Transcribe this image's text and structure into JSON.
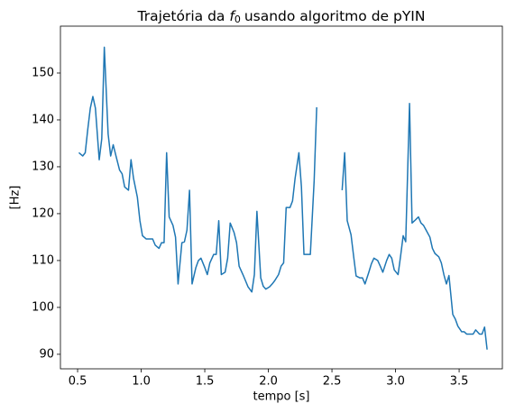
{
  "chart_data": {
    "type": "line",
    "title": {
      "before": "Trajetória da",
      "symbol": "f",
      "subscript": "0",
      "after": "usando algoritmo de pYIN"
    },
    "xlabel": "tempo [s]",
    "ylabel": "[Hz]",
    "color": "#1f77b4",
    "x": [
      0.51,
      0.54,
      0.56,
      0.58,
      0.6,
      0.62,
      0.64,
      0.67,
      0.69,
      0.71,
      0.74,
      0.76,
      0.78,
      0.8,
      0.83,
      0.85,
      0.87,
      0.9,
      0.92,
      0.94,
      0.97,
      0.99,
      1.01,
      1.04,
      1.06,
      1.09,
      1.11,
      1.14,
      1.16,
      1.18,
      1.2,
      1.22,
      1.25,
      1.27,
      1.29,
      1.32,
      1.34,
      1.36,
      1.38,
      1.4,
      1.43,
      1.45,
      1.47,
      1.5,
      1.52,
      1.54,
      1.57,
      1.59,
      1.61,
      1.63,
      1.66,
      1.68,
      1.7,
      1.73,
      1.75,
      1.77,
      1.8,
      1.82,
      1.84,
      1.87,
      1.89,
      1.91,
      1.94,
      1.96,
      1.98,
      2.01,
      2.03,
      2.05,
      2.08,
      2.1,
      2.12,
      2.14,
      2.17,
      2.19,
      2.21,
      2.24,
      2.26,
      2.28,
      2.31,
      2.33,
      2.36,
      2.38,
      2.48,
      2.58,
      2.6,
      2.62,
      2.65,
      2.67,
      2.69,
      2.72,
      2.74,
      2.76,
      2.79,
      2.81,
      2.83,
      2.86,
      2.88,
      2.9,
      2.93,
      2.95,
      2.97,
      2.99,
      3.02,
      3.04,
      3.06,
      3.08,
      3.11,
      3.13,
      3.15,
      3.18,
      3.2,
      3.22,
      3.24,
      3.27,
      3.29,
      3.31,
      3.34,
      3.36,
      3.38,
      3.4,
      3.42,
      3.45,
      3.47,
      3.49,
      3.52,
      3.54,
      3.56,
      3.59,
      3.61,
      3.63,
      3.66,
      3.68,
      3.7,
      3.72
    ],
    "values": [
      133,
      132.3,
      133,
      138,
      142.5,
      145,
      142.5,
      131.5,
      136,
      155.5,
      137,
      132.3,
      134.7,
      132.5,
      129.3,
      128.5,
      125.7,
      125,
      131.5,
      127.5,
      123.5,
      118.5,
      115.3,
      114.6,
      114.6,
      114.6,
      113.3,
      112.6,
      113.8,
      113.8,
      133,
      119.3,
      117.5,
      115,
      105,
      113.8,
      114,
      116.5,
      125,
      105,
      108.5,
      110,
      110.5,
      108.5,
      107,
      109.5,
      111.3,
      111.3,
      118.5,
      107,
      107.5,
      110.5,
      118,
      116,
      113.8,
      108.8,
      107,
      105.7,
      104.4,
      103.3,
      107,
      120.5,
      106.3,
      104.5,
      103.9,
      104.4,
      105,
      105.7,
      107,
      108.8,
      109.5,
      121.3,
      121.3,
      122.7,
      127.5,
      133,
      125.7,
      111.3,
      111.3,
      111.3,
      127,
      142.7,
      null,
      125,
      133,
      118.5,
      115.5,
      111,
      106.7,
      106.3,
      106.3,
      105,
      107.5,
      109.3,
      110.5,
      110,
      108.8,
      107.5,
      110,
      111.3,
      110.5,
      108,
      107,
      111,
      115.3,
      114,
      143.5,
      118,
      118.5,
      119.3,
      118,
      117.5,
      116.5,
      115,
      112.6,
      111.5,
      110.8,
      109.5,
      107,
      105,
      106.8,
      98.5,
      97.5,
      96,
      94.8,
      94.8,
      94.3,
      94.3,
      94.3,
      95.2,
      94.3,
      94.3,
      95.8,
      91
    ],
    "xlim": [
      0.365,
      3.84
    ],
    "ylim": [
      86.9,
      160
    ],
    "xticks": [
      0.5,
      {
        "value": 1,
        "label": "1.0"
      },
      1.5,
      {
        "value": 2,
        "label": "2.0"
      },
      2.5,
      {
        "value": 3,
        "label": "3.0"
      },
      3.5
    ],
    "yticks": [
      90,
      100,
      110,
      120,
      130,
      140,
      150
    ]
  }
}
